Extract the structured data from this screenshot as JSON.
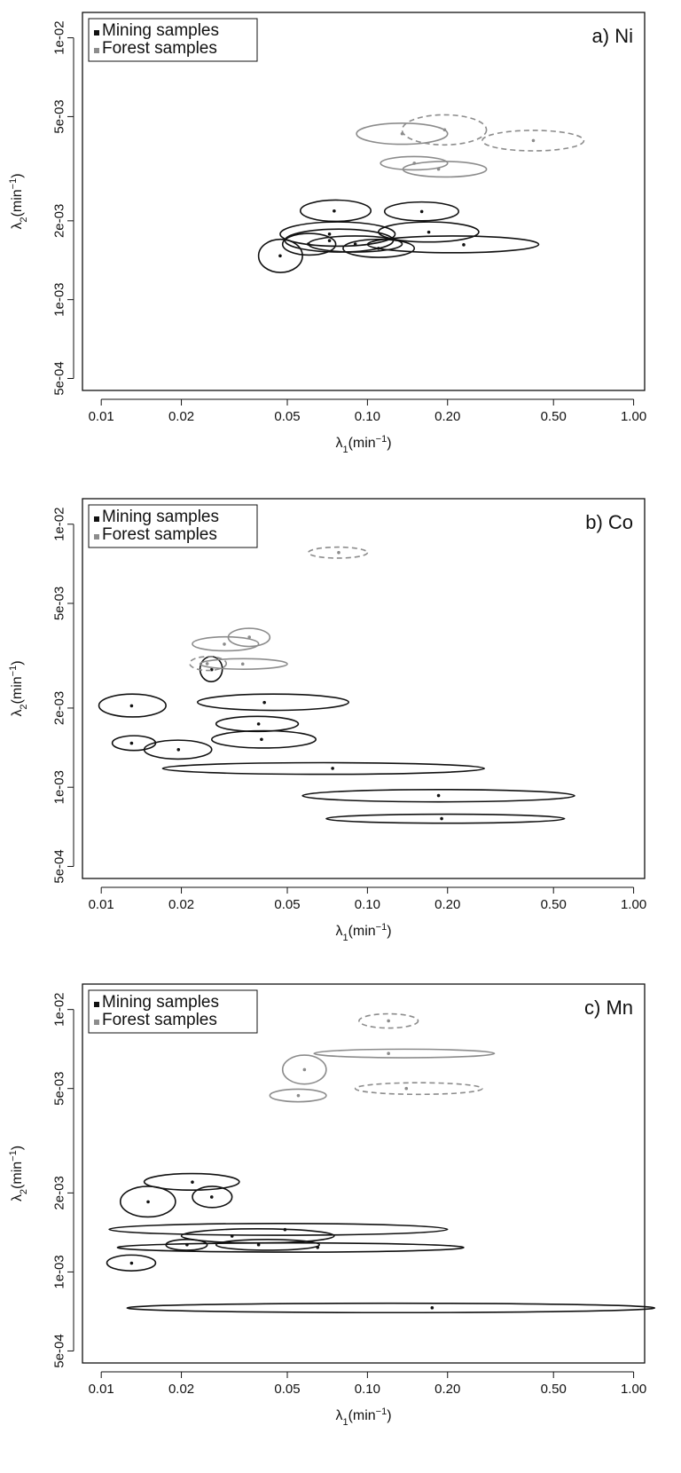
{
  "figure": {
    "panels": [
      {
        "id": "ni",
        "title": "a) Ni"
      },
      {
        "id": "co",
        "title": "b) Co"
      },
      {
        "id": "mn",
        "title": "c) Mn"
      }
    ],
    "legend": [
      {
        "label": "Mining samples",
        "color": "#111111"
      },
      {
        "label": "Forest samples",
        "color": "#8c8c8c"
      }
    ]
  },
  "chart_data": [
    {
      "type": "scatter",
      "title": "a) Ni",
      "xlabel": "λ1(min−1)",
      "ylabel": "λ2(min−1)",
      "xscale": "log",
      "yscale": "log",
      "xlim": [
        0.0085,
        1.1
      ],
      "ylim": [
        0.00045,
        0.0125
      ],
      "xticks": [
        0.01,
        0.02,
        0.05,
        0.1,
        0.2,
        0.5,
        1.0
      ],
      "xtick_labels": [
        "0.01",
        "0.02",
        "0.05",
        "0.10",
        "0.20",
        "0.50",
        "1.00"
      ],
      "yticks": [
        0.0005,
        0.001,
        0.002,
        0.005,
        0.01
      ],
      "ytick_labels": [
        "5e-04",
        "1e-03",
        "2e-03",
        "5e-03",
        "1e-02"
      ],
      "legend_position": "top-left",
      "series": [
        {
          "name": "Mining samples",
          "color": "#111111",
          "points": [
            {
              "x": 0.047,
              "y": 0.00147,
              "x_range": [
                0.039,
                0.057
              ],
              "y_range": [
                0.00127,
                0.0017
              ]
            },
            {
              "x": 0.06,
              "y": 0.00163,
              "x_range": [
                0.048,
                0.076
              ],
              "y_range": [
                0.00148,
                0.00179
              ]
            },
            {
              "x": 0.072,
              "y": 0.00168,
              "x_range": [
                0.049,
                0.125
              ],
              "y_range": [
                0.00152,
                0.00186
              ]
            },
            {
              "x": 0.072,
              "y": 0.00178,
              "x_range": [
                0.047,
                0.127
              ],
              "y_range": [
                0.0016,
                0.00198
              ]
            },
            {
              "x": 0.075,
              "y": 0.00218,
              "x_range": [
                0.056,
                0.103
              ],
              "y_range": [
                0.00199,
                0.0024
              ]
            },
            {
              "x": 0.09,
              "y": 0.00163,
              "x_range": [
                0.06,
                0.135
              ],
              "y_range": [
                0.00152,
                0.00175
              ]
            },
            {
              "x": 0.11,
              "y": 0.00157,
              "x_range": [
                0.081,
                0.15
              ],
              "y_range": [
                0.00145,
                0.0017
              ]
            },
            {
              "x": 0.16,
              "y": 0.00217,
              "x_range": [
                0.116,
                0.22
              ],
              "y_range": [
                0.002,
                0.00236
              ]
            },
            {
              "x": 0.17,
              "y": 0.00181,
              "x_range": [
                0.11,
                0.262
              ],
              "y_range": [
                0.00166,
                0.00198
              ]
            },
            {
              "x": 0.23,
              "y": 0.00162,
              "x_range": [
                0.1,
                0.44
              ],
              "y_range": [
                0.00151,
                0.00175
              ]
            }
          ]
        },
        {
          "name": "Forest samples",
          "color": "#8c8c8c",
          "points": [
            {
              "x": 0.135,
              "y": 0.0043,
              "x_range": [
                0.091,
                0.2
              ],
              "y_range": [
                0.00392,
                0.00472
              ],
              "estimate_style": "solid"
            },
            {
              "x": 0.15,
              "y": 0.00332,
              "x_range": [
                0.112,
                0.2
              ],
              "y_range": [
                0.00313,
                0.00352
              ],
              "estimate_style": "solid"
            },
            {
              "x": 0.185,
              "y": 0.00315,
              "x_range": [
                0.136,
                0.28
              ],
              "y_range": [
                0.00294,
                0.00337
              ],
              "estimate_style": "solid"
            },
            {
              "x": 0.195,
              "y": 0.00445,
              "x_range": [
                0.135,
                0.28
              ],
              "y_range": [
                0.0039,
                0.00508
              ],
              "estimate_style": "dashed"
            },
            {
              "x": 0.42,
              "y": 0.00405,
              "x_range": [
                0.27,
                0.65
              ],
              "y_range": [
                0.0037,
                0.00443
              ],
              "estimate_style": "dashed"
            }
          ]
        }
      ]
    },
    {
      "type": "scatter",
      "title": "b) Co",
      "xlabel": "λ1(min−1)",
      "ylabel": "λ2(min−1)",
      "xscale": "log",
      "yscale": "log",
      "xlim": [
        0.0085,
        1.1
      ],
      "ylim": [
        0.00045,
        0.0125
      ],
      "xticks": [
        0.01,
        0.02,
        0.05,
        0.1,
        0.2,
        0.5,
        1.0
      ],
      "xtick_labels": [
        "0.01",
        "0.02",
        "0.05",
        "0.10",
        "0.20",
        "0.50",
        "1.00"
      ],
      "yticks": [
        0.0005,
        0.001,
        0.002,
        0.005,
        0.01
      ],
      "ytick_labels": [
        "5e-04",
        "1e-03",
        "2e-03",
        "5e-03",
        "1e-02"
      ],
      "legend_position": "top-left",
      "series": [
        {
          "name": "Mining samples",
          "color": "#111111",
          "points": [
            {
              "x": 0.013,
              "y": 0.00204,
              "x_range": [
                0.0098,
                0.0175
              ],
              "y_range": [
                0.00185,
                0.00226
              ]
            },
            {
              "x": 0.013,
              "y": 0.00147,
              "x_range": [
                0.011,
                0.016
              ],
              "y_range": [
                0.00138,
                0.00157
              ]
            },
            {
              "x": 0.0195,
              "y": 0.00139,
              "x_range": [
                0.0145,
                0.026
              ],
              "y_range": [
                0.00128,
                0.00151
              ]
            },
            {
              "x": 0.026,
              "y": 0.0028,
              "x_range": [
                0.0235,
                0.0285
              ],
              "y_range": [
                0.00252,
                0.00314
              ]
            },
            {
              "x": 0.041,
              "y": 0.0021,
              "x_range": [
                0.023,
                0.085
              ],
              "y_range": [
                0.00196,
                0.00226
              ]
            },
            {
              "x": 0.039,
              "y": 0.00174,
              "x_range": [
                0.027,
                0.055
              ],
              "y_range": [
                0.00163,
                0.00186
              ]
            },
            {
              "x": 0.04,
              "y": 0.00152,
              "x_range": [
                0.026,
                0.064
              ],
              "y_range": [
                0.00141,
                0.00164
              ]
            },
            {
              "x": 0.074,
              "y": 0.00118,
              "x_range": [
                0.017,
                0.275
              ],
              "y_range": [
                0.00112,
                0.00124
              ]
            },
            {
              "x": 0.185,
              "y": 0.00093,
              "x_range": [
                0.057,
                0.6
              ],
              "y_range": [
                0.00088,
                0.00098
              ]
            },
            {
              "x": 0.19,
              "y": 0.00076,
              "x_range": [
                0.07,
                0.55
              ],
              "y_range": [
                0.00073,
                0.00079
              ]
            }
          ]
        },
        {
          "name": "Forest samples",
          "color": "#8c8c8c",
          "points": [
            {
              "x": 0.029,
              "y": 0.0035,
              "x_range": [
                0.022,
                0.039
              ],
              "y_range": [
                0.0033,
                0.00373
              ],
              "estimate_style": "solid"
            },
            {
              "x": 0.036,
              "y": 0.00372,
              "x_range": [
                0.03,
                0.043
              ],
              "y_range": [
                0.00343,
                0.00402
              ],
              "estimate_style": "solid"
            },
            {
              "x": 0.025,
              "y": 0.00295,
              "x_range": [
                0.0215,
                0.0295
              ],
              "y_range": [
                0.00278,
                0.00314
              ],
              "estimate_style": "dashed"
            },
            {
              "x": 0.034,
              "y": 0.00294,
              "x_range": [
                0.0235,
                0.05
              ],
              "y_range": [
                0.00281,
                0.00308
              ],
              "estimate_style": "solid"
            },
            {
              "x": 0.078,
              "y": 0.0078,
              "x_range": [
                0.06,
                0.1
              ],
              "y_range": [
                0.00743,
                0.00818
              ],
              "estimate_style": "dashed"
            }
          ]
        }
      ]
    },
    {
      "type": "scatter",
      "title": "c) Mn",
      "xlabel": "λ1(min−1)",
      "ylabel": "λ2(min−1)",
      "xscale": "log",
      "yscale": "log",
      "xlim": [
        0.0085,
        1.1
      ],
      "ylim": [
        0.00045,
        0.0125
      ],
      "xticks": [
        0.01,
        0.02,
        0.05,
        0.1,
        0.2,
        0.5,
        1.0
      ],
      "xtick_labels": [
        "0.01",
        "0.02",
        "0.05",
        "0.10",
        "0.20",
        "0.50",
        "1.00"
      ],
      "yticks": [
        0.0005,
        0.001,
        0.002,
        0.005,
        0.01
      ],
      "ytick_labels": [
        "5e-04",
        "1e-03",
        "2e-03",
        "5e-03",
        "1e-02"
      ],
      "legend_position": "top-left",
      "series": [
        {
          "name": "Mining samples",
          "color": "#111111",
          "points": [
            {
              "x": 0.013,
              "y": 0.00108,
              "x_range": [
                0.0105,
                0.016
              ],
              "y_range": [
                0.00101,
                0.00116
              ]
            },
            {
              "x": 0.015,
              "y": 0.00185,
              "x_range": [
                0.0118,
                0.019
              ],
              "y_range": [
                0.00162,
                0.00212
              ]
            },
            {
              "x": 0.021,
              "y": 0.00127,
              "x_range": [
                0.0175,
                0.025
              ],
              "y_range": [
                0.00121,
                0.00133
              ]
            },
            {
              "x": 0.022,
              "y": 0.0022,
              "x_range": [
                0.0145,
                0.033
              ],
              "y_range": [
                0.00205,
                0.00237
              ]
            },
            {
              "x": 0.026,
              "y": 0.00193,
              "x_range": [
                0.022,
                0.031
              ],
              "y_range": [
                0.00176,
                0.00212
              ]
            },
            {
              "x": 0.031,
              "y": 0.00137,
              "x_range": [
                0.02,
                0.075
              ],
              "y_range": [
                0.00129,
                0.00146
              ]
            },
            {
              "x": 0.039,
              "y": 0.00127,
              "x_range": [
                0.027,
                0.066
              ],
              "y_range": [
                0.00121,
                0.00133
              ]
            },
            {
              "x": 0.049,
              "y": 0.00145,
              "x_range": [
                0.0107,
                0.2
              ],
              "y_range": [
                0.00138,
                0.00153
              ]
            },
            {
              "x": 0.065,
              "y": 0.00124,
              "x_range": [
                0.0115,
                0.23
              ],
              "y_range": [
                0.00119,
                0.00129
              ]
            },
            {
              "x": 0.175,
              "y": 0.00073,
              "x_range": [
                0.0125,
                1.2
              ],
              "y_range": [
                0.0007,
                0.00076
              ]
            }
          ]
        },
        {
          "name": "Forest samples",
          "color": "#8c8c8c",
          "points": [
            {
              "x": 0.058,
              "y": 0.0059,
              "x_range": [
                0.048,
                0.07
              ],
              "y_range": [
                0.0052,
                0.0067
              ],
              "estimate_style": "solid"
            },
            {
              "x": 0.055,
              "y": 0.0047,
              "x_range": [
                0.043,
                0.07
              ],
              "y_range": [
                0.00445,
                0.00497
              ],
              "estimate_style": "solid"
            },
            {
              "x": 0.12,
              "y": 0.00905,
              "x_range": [
                0.093,
                0.155
              ],
              "y_range": [
                0.0085,
                0.00963
              ],
              "estimate_style": "dashed"
            },
            {
              "x": 0.12,
              "y": 0.0068,
              "x_range": [
                0.063,
                0.3
              ],
              "y_range": [
                0.00655,
                0.00706
              ],
              "estimate_style": "solid"
            },
            {
              "x": 0.14,
              "y": 0.005,
              "x_range": [
                0.09,
                0.27
              ],
              "y_range": [
                0.00475,
                0.00526
              ],
              "estimate_style": "dashed"
            }
          ]
        }
      ]
    }
  ]
}
